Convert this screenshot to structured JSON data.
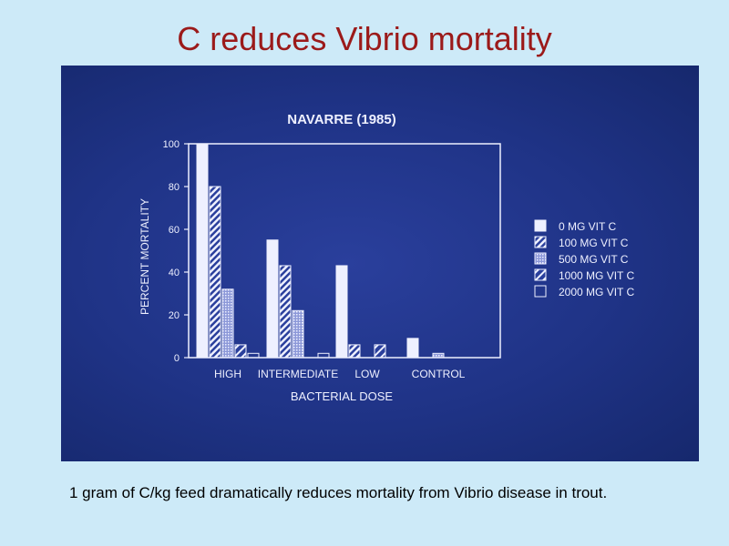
{
  "slide": {
    "title": "C reduces Vibrio mortality",
    "caption": "1 gram of C/kg feed dramatically reduces mortality from Vibrio disease in trout."
  },
  "colors": {
    "background": "#cdeaf8",
    "title": "#9b1a1a",
    "photo_bg": "#1f3386",
    "chart_ink": "#eef0ff"
  },
  "chart_data": {
    "type": "bar",
    "title": "NAVARRE (1985)",
    "xlabel": "BACTERIAL DOSE",
    "ylabel": "PERCENT MORTALITY",
    "ylim": [
      0,
      100
    ],
    "yticks": [
      0,
      20,
      40,
      60,
      80,
      100
    ],
    "categories": [
      "HIGH",
      "INTERMEDIATE",
      "LOW",
      "CONTROL"
    ],
    "legend_position": "right",
    "series": [
      {
        "name": "0 MG VIT C",
        "pattern": "solid",
        "values": [
          100,
          55,
          43,
          9
        ]
      },
      {
        "name": "100 MG VIT C",
        "pattern": "diag-dense",
        "values": [
          80,
          43,
          6,
          0
        ]
      },
      {
        "name": "500 MG VIT C",
        "pattern": "dots",
        "values": [
          32,
          22,
          0,
          2
        ]
      },
      {
        "name": "1000 MG VIT C",
        "pattern": "diag-sparse",
        "values": [
          6,
          0,
          6,
          0
        ]
      },
      {
        "name": "2000 MG VIT C",
        "pattern": "outline",
        "values": [
          2,
          2,
          0,
          0
        ]
      }
    ]
  }
}
